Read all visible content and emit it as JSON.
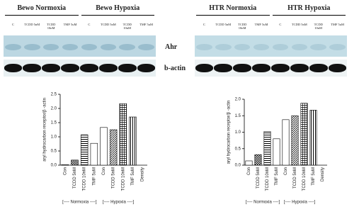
{
  "blots": [
    {
      "groups": [
        "Bewo Normoxia",
        "Bewo Hypoxia"
      ],
      "lanes": [
        "C",
        "TCDD 5nM",
        "TCDD 10nM",
        "TMF 5uM",
        "C",
        "TCDD 5nM",
        "TCDD 10nM",
        "TMF 5uM"
      ]
    },
    {
      "groups": [
        "HTR Normoxia",
        "HTR Hypoxia"
      ],
      "lanes": [
        "C",
        "TCDD 5nM",
        "TCDD 10nM",
        "TMF 5uM",
        "C",
        "TCDD 5nM",
        "TCDD 10nM",
        "TMF 5uM"
      ]
    }
  ],
  "band_labels": [
    "Ahr",
    "b-actin"
  ],
  "chart_data": [
    {
      "type": "bar",
      "y_label": "aryl hydrocarbon receptor/β -actin",
      "categories": [
        "Con",
        "TCDD 5nM",
        "TCDD 10nM",
        "TMF 5uM",
        "Con",
        "TCDD 5nM",
        "TCDD 10nM",
        "TMF 5uM",
        "Density"
      ],
      "values": [
        0.02,
        0.18,
        1.07,
        0.77,
        1.33,
        1.25,
        2.17,
        1.7,
        null
      ],
      "patterns": [
        "white",
        "checker",
        "hstripe",
        "white",
        "white",
        "diag",
        "grid",
        "vstripe",
        "white"
      ],
      "group_labels": [
        "[---- Normoxia ----]",
        "[---- Hypoxia ----]"
      ],
      "ylim": [
        0,
        2.5
      ],
      "yticks": [
        {
          "value": 0,
          "label": "0.0"
        },
        0.5,
        {
          "value": 1,
          "label": "1.0"
        },
        1.5,
        {
          "value": 2,
          "label": "2.0"
        },
        2.5
      ]
    },
    {
      "type": "bar",
      "y_label": "aryl hydrocarbon receptor/β -actin",
      "categories": [
        "Con",
        "TCDD 5nM",
        "TCDD 10nM",
        "TMF 5uM",
        "Con",
        "TCDD 5nM",
        "TCDD 10nM",
        "TMF 5uM",
        "Density"
      ],
      "values": [
        0.13,
        0.32,
        1.02,
        0.8,
        1.38,
        1.5,
        1.88,
        1.67,
        null
      ],
      "patterns": [
        "white",
        "checker",
        "hstripe",
        "white",
        "white",
        "diag",
        "grid",
        "vstripe",
        "white"
      ],
      "group_labels": [
        "[---- Normoxia ----]",
        "[---- Hypoxia ----]"
      ],
      "ylim": [
        0,
        2
      ],
      "yticks": [
        {
          "value": 0,
          "label": "0.0"
        },
        0.5,
        {
          "value": 1,
          "label": "1.0"
        },
        1.5,
        {
          "value": 2,
          "label": "2.0"
        }
      ]
    }
  ]
}
